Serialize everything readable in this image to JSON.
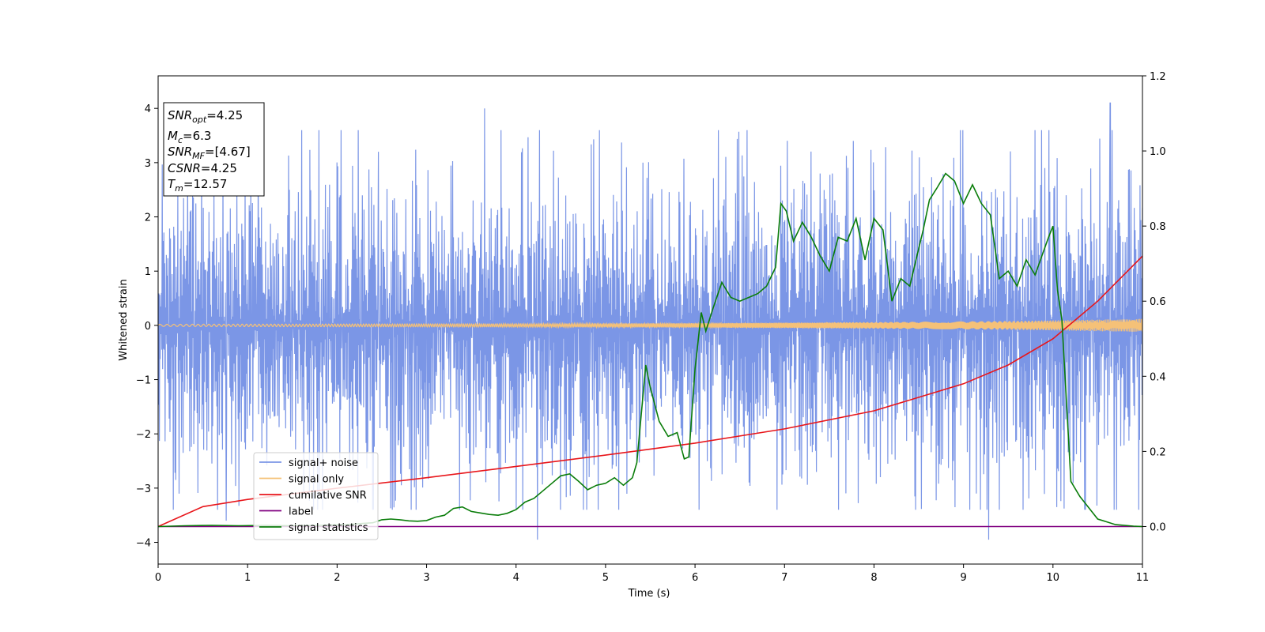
{
  "chart_data": {
    "type": "line",
    "xlabel": "Time (s)",
    "ylabel": "Whitened strain",
    "xlim": [
      0,
      11
    ],
    "ylim": [
      -4.4,
      4.6
    ],
    "y2lim": [
      -0.1,
      1.2
    ],
    "x_ticks": [
      "0",
      "1",
      "2",
      "3",
      "4",
      "5",
      "6",
      "7",
      "8",
      "9",
      "10",
      "11"
    ],
    "y_ticks": [
      "4",
      "3",
      "2",
      "1",
      "0",
      "−1",
      "−2",
      "−3",
      "−4"
    ],
    "y2_ticks": [
      "1.2",
      "1.0",
      "0.8",
      "0.6",
      "0.4",
      "0.2",
      "0.0"
    ],
    "grid": false,
    "legend_position": "lower-left",
    "info_box": [
      {
        "base": "SNR",
        "sub": "opt",
        "rest": "=4.25"
      },
      {
        "base": "M",
        "sub": "c",
        "rest": "=6.3"
      },
      {
        "base": "SNR",
        "sub": "MF",
        "rest": "=[4.67]"
      },
      {
        "base": "CSNR",
        "sub": "",
        "rest": "=4.25"
      },
      {
        "base": "T",
        "sub": "m",
        "rest": "=12.57"
      }
    ],
    "series": [
      {
        "name": "signal+ noise",
        "color": "#7b96e6",
        "axis": "left",
        "style": "noise",
        "band_upper_typical": 1.6,
        "band_lower_typical": -1.7,
        "spike_peaks": [
          [
            0.76,
            -3.6
          ],
          [
            3.65,
            4.0
          ],
          [
            4.24,
            -3.95
          ],
          [
            10.64,
            4.1
          ],
          [
            9.28,
            -3.95
          ],
          [
            2.46,
            3.2
          ],
          [
            7.77,
            3.4
          ]
        ]
      },
      {
        "name": "signal only",
        "color": "#f5c178",
        "axis": "left",
        "style": "chirp",
        "envelope": [
          [
            0,
            0.02
          ],
          [
            4,
            0.03
          ],
          [
            6,
            0.04
          ],
          [
            8,
            0.06
          ],
          [
            9.5,
            0.08
          ],
          [
            11,
            0.12
          ]
        ]
      },
      {
        "name": "cumilative SNR",
        "color": "#e8161b",
        "axis": "right",
        "x": [
          0,
          0.5,
          1,
          2,
          3,
          4,
          5,
          6,
          7,
          8,
          9,
          9.5,
          10,
          10.5,
          11
        ],
        "values": [
          0.0,
          0.053,
          0.072,
          0.102,
          0.13,
          0.16,
          0.19,
          0.222,
          0.26,
          0.308,
          0.38,
          0.43,
          0.5,
          0.6,
          0.72
        ]
      },
      {
        "name": "label",
        "color": "#800080",
        "axis": "right",
        "x": [
          0,
          11
        ],
        "values": [
          0.0,
          0.0
        ]
      },
      {
        "name": "signal statistics",
        "color": "#0a7d0a",
        "axis": "right",
        "x": [
          0,
          0.3,
          0.6,
          0.9,
          1.2,
          1.5,
          1.8,
          2.1,
          2.4,
          2.5,
          2.6,
          2.7,
          2.8,
          2.9,
          3.0,
          3.1,
          3.2,
          3.3,
          3.4,
          3.5,
          3.6,
          3.7,
          3.8,
          3.9,
          4.0,
          4.1,
          4.2,
          4.3,
          4.4,
          4.5,
          4.6,
          4.7,
          4.8,
          4.9,
          5.0,
          5.1,
          5.2,
          5.3,
          5.35,
          5.45,
          5.5,
          5.6,
          5.7,
          5.8,
          5.88,
          5.93,
          6.0,
          6.07,
          6.12,
          6.2,
          6.3,
          6.4,
          6.5,
          6.6,
          6.7,
          6.8,
          6.9,
          6.96,
          7.02,
          7.1,
          7.2,
          7.3,
          7.4,
          7.5,
          7.6,
          7.7,
          7.8,
          7.9,
          8.0,
          8.1,
          8.2,
          8.3,
          8.4,
          8.5,
          8.55,
          8.62,
          8.7,
          8.8,
          8.9,
          9.0,
          9.1,
          9.2,
          9.3,
          9.4,
          9.5,
          9.6,
          9.7,
          9.8,
          9.95,
          10.0,
          10.05,
          10.1,
          10.2,
          10.3,
          10.5,
          10.7,
          10.9,
          11.0
        ],
        "values": [
          0.0,
          0.002,
          0.003,
          0.002,
          0.003,
          0.002,
          0.003,
          0.005,
          0.01,
          0.018,
          0.02,
          0.018,
          0.015,
          0.014,
          0.016,
          0.025,
          0.03,
          0.048,
          0.052,
          0.04,
          0.036,
          0.032,
          0.03,
          0.035,
          0.045,
          0.065,
          0.075,
          0.095,
          0.115,
          0.135,
          0.14,
          0.12,
          0.098,
          0.11,
          0.115,
          0.13,
          0.11,
          0.13,
          0.17,
          0.43,
          0.37,
          0.28,
          0.24,
          0.25,
          0.18,
          0.185,
          0.42,
          0.57,
          0.52,
          0.58,
          0.65,
          0.61,
          0.6,
          0.61,
          0.62,
          0.64,
          0.69,
          0.86,
          0.84,
          0.76,
          0.81,
          0.77,
          0.72,
          0.68,
          0.77,
          0.76,
          0.82,
          0.71,
          0.82,
          0.79,
          0.6,
          0.66,
          0.64,
          0.74,
          0.79,
          0.87,
          0.9,
          0.94,
          0.92,
          0.86,
          0.91,
          0.86,
          0.83,
          0.66,
          0.68,
          0.64,
          0.71,
          0.67,
          0.77,
          0.8,
          0.63,
          0.55,
          0.12,
          0.08,
          0.02,
          0.005,
          0.001,
          0.0
        ]
      }
    ]
  }
}
